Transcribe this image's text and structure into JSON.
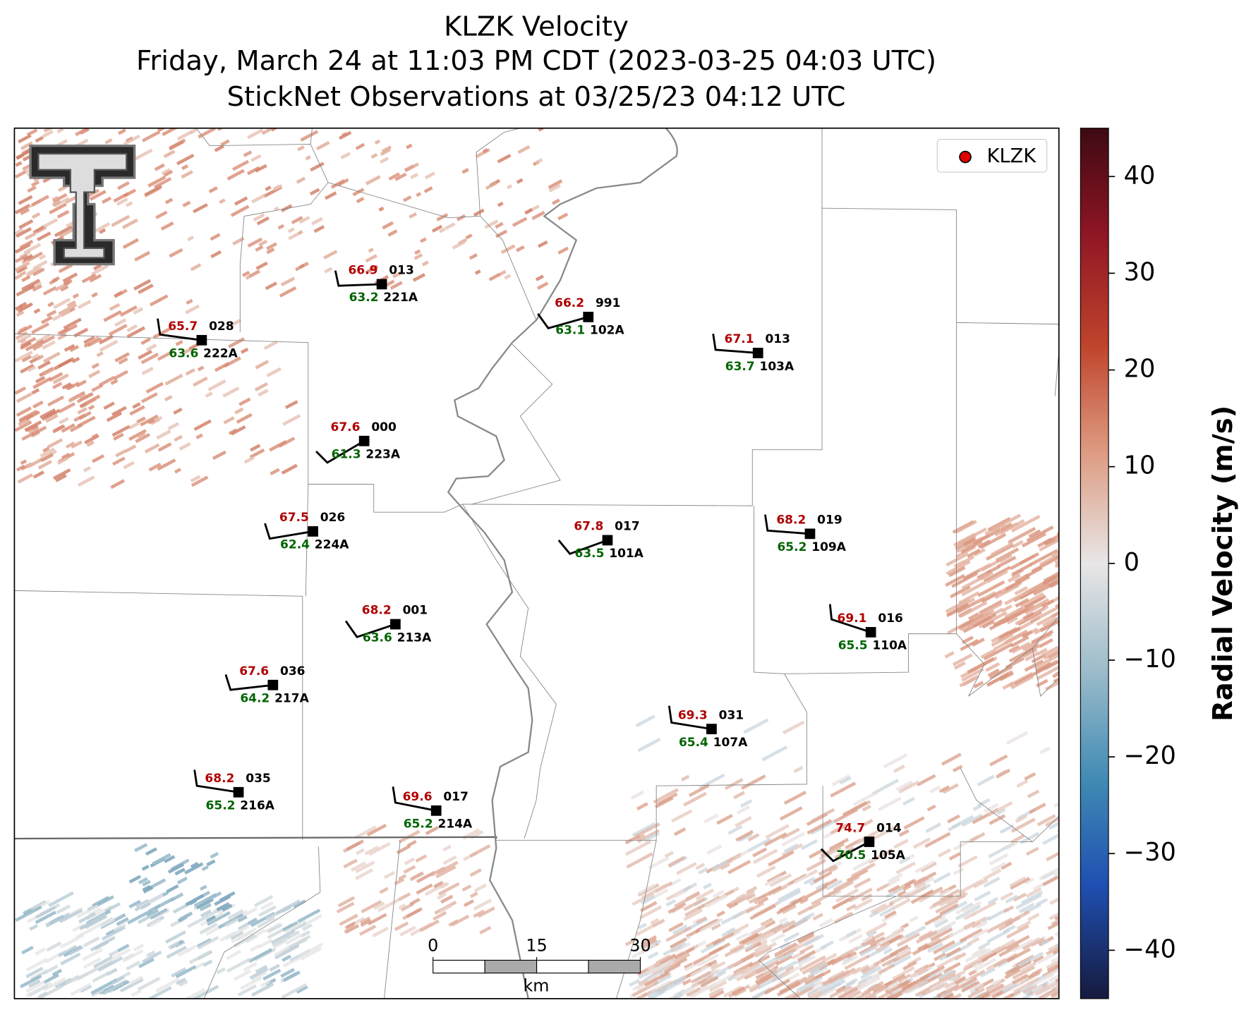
{
  "title": [
    "KLZK Velocity",
    "Friday, March 24 at 11:03 PM CDT (2023-03-25 04:03 UTC)",
    "StickNet Observations at 03/25/23 04:12 UTC"
  ],
  "legend": {
    "label": "KLZK"
  },
  "colorbar": {
    "label": "Radial Velocity (m/s)",
    "lim": [
      -45,
      45
    ],
    "ticks": [
      {
        "value": -40,
        "label": "−40"
      },
      {
        "value": -30,
        "label": "−30"
      },
      {
        "value": -20,
        "label": "−20"
      },
      {
        "value": -10,
        "label": "−10"
      },
      0,
      10,
      20,
      30,
      40
    ]
  },
  "scale_bar": {
    "ticks": [
      0,
      15,
      30
    ],
    "unit": "km"
  },
  "stations": [
    {
      "id": "221A",
      "temperature": 66.9,
      "dewpoint": 63.2,
      "pressure": "013"
    },
    {
      "id": "222A",
      "temperature": 65.7,
      "dewpoint": 63.6,
      "pressure": "028"
    },
    {
      "id": "102A",
      "temperature": 66.2,
      "dewpoint": 63.1,
      "pressure": "991"
    },
    {
      "id": "103A",
      "temperature": 67.1,
      "dewpoint": 63.7,
      "pressure": "013"
    },
    {
      "id": "223A",
      "temperature": 67.6,
      "dewpoint": 61.3,
      "pressure": "000"
    },
    {
      "id": "224A",
      "temperature": 67.5,
      "dewpoint": 62.4,
      "pressure": "026"
    },
    {
      "id": "101A",
      "temperature": 67.8,
      "dewpoint": 63.5,
      "pressure": "017"
    },
    {
      "id": "109A",
      "temperature": 68.2,
      "dewpoint": 65.2,
      "pressure": "019"
    },
    {
      "id": "213A",
      "temperature": 68.2,
      "dewpoint": 63.6,
      "pressure": "001"
    },
    {
      "id": "110A",
      "temperature": 69.1,
      "dewpoint": 65.5,
      "pressure": "016"
    },
    {
      "id": "217A",
      "temperature": 67.6,
      "dewpoint": 64.2,
      "pressure": "036"
    },
    {
      "id": "107A",
      "temperature": 69.3,
      "dewpoint": 65.4,
      "pressure": "031"
    },
    {
      "id": "216A",
      "temperature": 68.2,
      "dewpoint": 65.2,
      "pressure": "035"
    },
    {
      "id": "214A",
      "temperature": 69.6,
      "dewpoint": 65.2,
      "pressure": "017"
    },
    {
      "id": "105A",
      "temperature": 74.7,
      "dewpoint": 70.5,
      "pressure": "014"
    }
  ]
}
